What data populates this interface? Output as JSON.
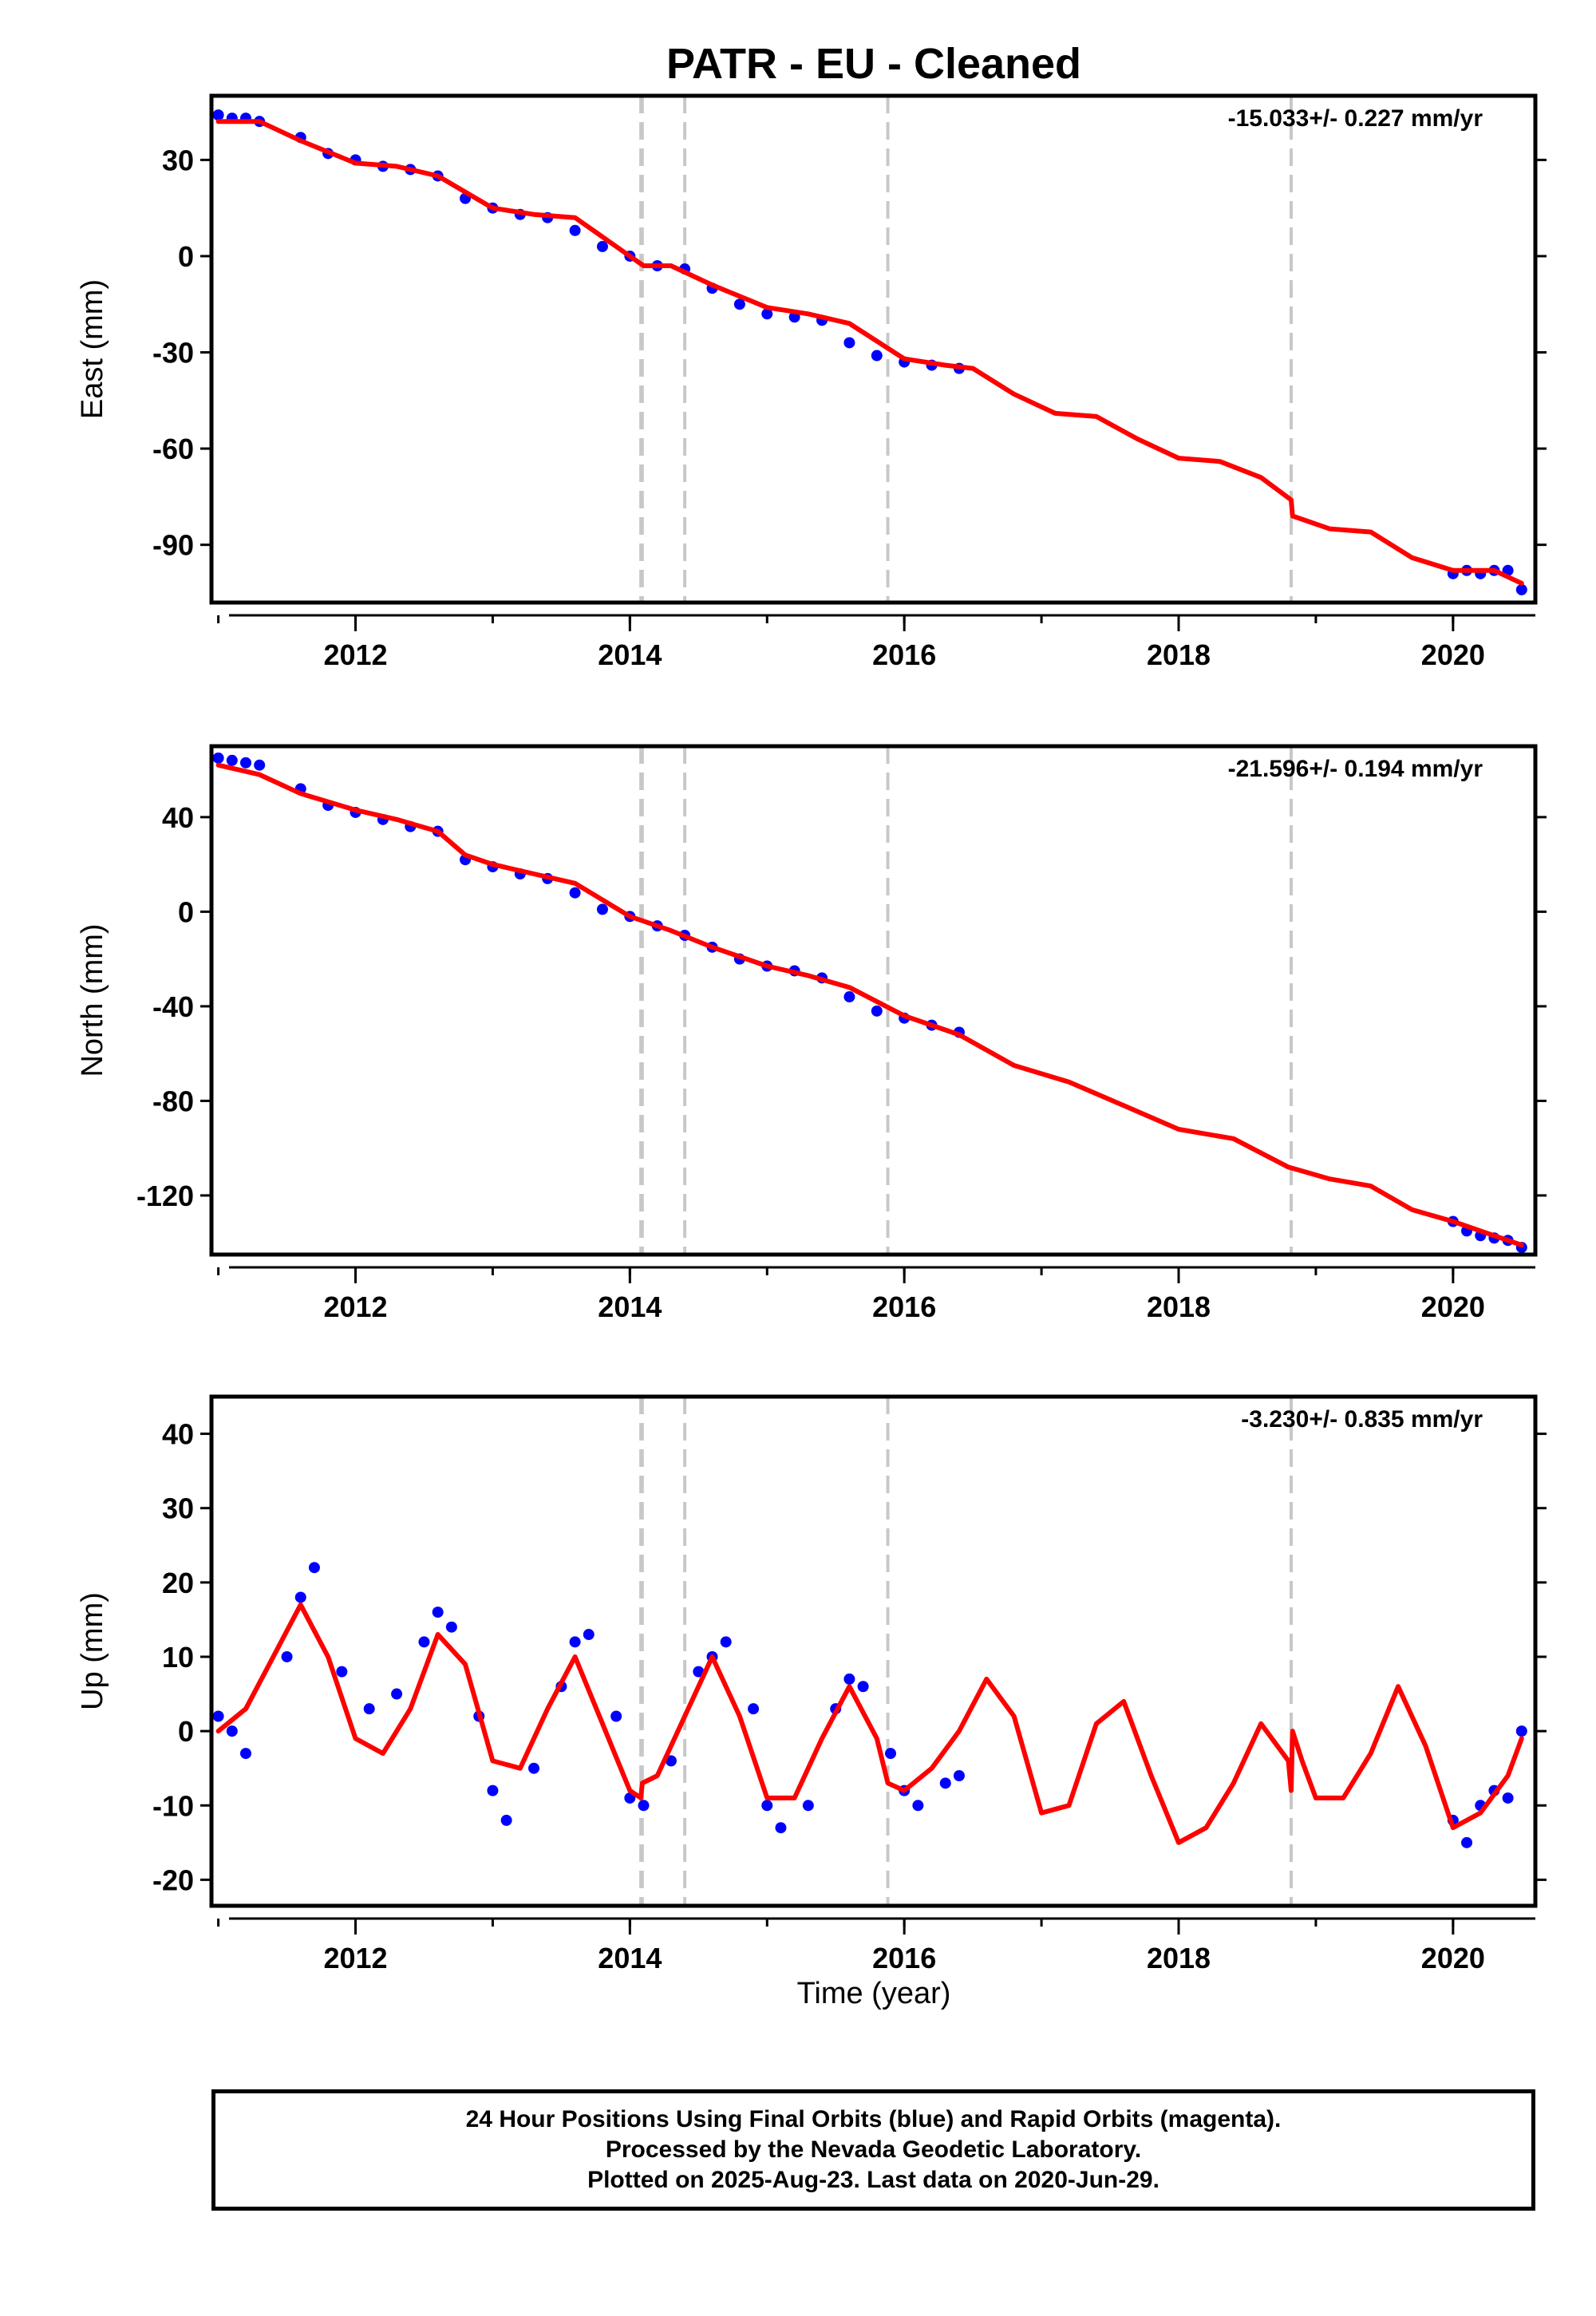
{
  "title": "PATR  - EU - Cleaned",
  "x_axis_label": "Time (year)",
  "caption": [
    "24 Hour Positions Using Final Orbits (blue) and Rapid Orbits (magenta).",
    "Processed by the Nevada Geodetic Laboratory.",
    "Plotted on 2025-Aug-23. Last data on 2020-Jun-29."
  ],
  "colors": {
    "observations": "#0000ff",
    "model": "#ff0000",
    "event_lines": "#c8c8c8",
    "frame": "#000000"
  },
  "chart_data": [
    {
      "type": "scatter",
      "panel": "east",
      "ylabel": "East (mm)",
      "rate_text": "-15.033+/- 0.227 mm/yr",
      "xlim": [
        2010.95,
        2020.6
      ],
      "ylim": [
        -108,
        50
      ],
      "xticks": [
        2012,
        2014,
        2016,
        2018,
        2020
      ],
      "yticks": [
        30,
        0,
        -30,
        -60,
        -90
      ],
      "event_lines": [
        2014.08,
        2014.09,
        2014.4,
        2015.88,
        2018.82
      ],
      "series": [
        {
          "role": "observations",
          "x": [
            2011.0,
            2011.1,
            2011.2,
            2011.3,
            2011.6,
            2011.8,
            2012.0,
            2012.2,
            2012.4,
            2012.6,
            2012.8,
            2013.0,
            2013.2,
            2013.4,
            2013.6,
            2013.8,
            2014.0,
            2014.2,
            2014.4,
            2014.6,
            2014.8,
            2015.0,
            2015.2,
            2015.4,
            2015.6,
            2015.8,
            2016.0,
            2016.2,
            2016.4,
            2020.0,
            2020.1,
            2020.2,
            2020.3,
            2020.4,
            2020.5
          ],
          "y": [
            44,
            43,
            43,
            42,
            37,
            32,
            30,
            28,
            27,
            25,
            18,
            15,
            13,
            12,
            8,
            3,
            0,
            -3,
            -4,
            -10,
            -15,
            -18,
            -19,
            -20,
            -27,
            -31,
            -33,
            -34,
            -35,
            -99,
            -98,
            -99,
            -98,
            -98,
            -104
          ]
        },
        {
          "role": "model",
          "x": [
            2011.0,
            2011.3,
            2011.6,
            2012.0,
            2012.3,
            2012.6,
            2013.0,
            2013.3,
            2013.6,
            2014.0,
            2014.1,
            2014.3,
            2014.6,
            2015.0,
            2015.3,
            2015.6,
            2016.0,
            2016.3,
            2016.5,
            2016.8,
            2017.1,
            2017.4,
            2017.7,
            2018.0,
            2018.3,
            2018.6,
            2018.82,
            2018.83,
            2019.1,
            2019.4,
            2019.7,
            2020.0,
            2020.3,
            2020.5
          ],
          "y": [
            42,
            42,
            36,
            29,
            28,
            25,
            15,
            13,
            12,
            0,
            -3,
            -3,
            -9,
            -16,
            -18,
            -21,
            -32,
            -34,
            -35,
            -43,
            -49,
            -50,
            -57,
            -63,
            -64,
            -69,
            -76,
            -81,
            -85,
            -86,
            -94,
            -98,
            -98,
            -102
          ]
        }
      ]
    },
    {
      "type": "scatter",
      "panel": "north",
      "ylabel": "North (mm)",
      "rate_text": "-21.596+/- 0.194 mm/yr",
      "xlim": [
        2010.95,
        2020.6
      ],
      "ylim": [
        -145,
        70
      ],
      "xticks": [
        2012,
        2014,
        2016,
        2018,
        2020
      ],
      "yticks": [
        40,
        0,
        -40,
        -80,
        -120
      ],
      "event_lines": [
        2014.08,
        2014.09,
        2014.4,
        2015.88,
        2018.82
      ],
      "series": [
        {
          "role": "observations",
          "x": [
            2011.0,
            2011.1,
            2011.2,
            2011.3,
            2011.6,
            2011.8,
            2012.0,
            2012.2,
            2012.4,
            2012.6,
            2012.8,
            2013.0,
            2013.2,
            2013.4,
            2013.6,
            2013.8,
            2014.0,
            2014.2,
            2014.4,
            2014.6,
            2014.8,
            2015.0,
            2015.2,
            2015.4,
            2015.6,
            2015.8,
            2016.0,
            2016.2,
            2016.4,
            2020.0,
            2020.1,
            2020.2,
            2020.3,
            2020.4,
            2020.5
          ],
          "y": [
            65,
            64,
            63,
            62,
            52,
            45,
            42,
            39,
            36,
            34,
            22,
            19,
            16,
            14,
            8,
            1,
            -2,
            -6,
            -10,
            -15,
            -20,
            -23,
            -25,
            -28,
            -36,
            -42,
            -45,
            -48,
            -51,
            -131,
            -135,
            -137,
            -138,
            -139,
            -142
          ]
        },
        {
          "role": "model",
          "x": [
            2011.0,
            2011.3,
            2011.6,
            2012.0,
            2012.3,
            2012.6,
            2012.8,
            2013.0,
            2013.3,
            2013.6,
            2014.0,
            2014.3,
            2014.6,
            2015.0,
            2015.3,
            2015.6,
            2016.0,
            2016.4,
            2016.8,
            2017.2,
            2017.6,
            2018.0,
            2018.4,
            2018.8,
            2019.1,
            2019.4,
            2019.7,
            2020.0,
            2020.3,
            2020.5
          ],
          "y": [
            62,
            58,
            50,
            43,
            39,
            34,
            24,
            20,
            16,
            12,
            -2,
            -8,
            -15,
            -23,
            -27,
            -32,
            -44,
            -52,
            -65,
            -72,
            -82,
            -92,
            -96,
            -108,
            -113,
            -116,
            -126,
            -131,
            -137,
            -141
          ]
        }
      ]
    },
    {
      "type": "scatter",
      "panel": "up",
      "ylabel": "Up (mm)",
      "rate_text": "-3.230+/- 0.835 mm/yr",
      "xlim": [
        2010.95,
        2020.6
      ],
      "ylim": [
        -23.5,
        45
      ],
      "xticks": [
        2012,
        2014,
        2016,
        2018,
        2020
      ],
      "yticks": [
        40,
        30,
        20,
        10,
        0,
        -10,
        -20
      ],
      "event_lines": [
        2014.08,
        2014.09,
        2014.4,
        2015.88,
        2018.82
      ],
      "series": [
        {
          "role": "observations",
          "x": [
            2011.0,
            2011.1,
            2011.2,
            2011.5,
            2011.6,
            2011.7,
            2011.9,
            2012.1,
            2012.3,
            2012.5,
            2012.6,
            2012.7,
            2012.9,
            2013.0,
            2013.1,
            2013.3,
            2013.5,
            2013.6,
            2013.7,
            2013.9,
            2014.0,
            2014.1,
            2014.3,
            2014.5,
            2014.6,
            2014.7,
            2014.9,
            2015.0,
            2015.1,
            2015.3,
            2015.5,
            2015.6,
            2015.7,
            2015.9,
            2016.0,
            2016.1,
            2016.3,
            2016.4,
            2020.0,
            2020.1,
            2020.2,
            2020.3,
            2020.4,
            2020.5
          ],
          "y": [
            2,
            0,
            -3,
            10,
            18,
            22,
            8,
            3,
            5,
            12,
            16,
            14,
            2,
            -8,
            -12,
            -5,
            6,
            12,
            13,
            2,
            -9,
            -10,
            -4,
            8,
            10,
            12,
            3,
            -10,
            -13,
            -10,
            3,
            7,
            6,
            -3,
            -8,
            -10,
            -7,
            -6,
            -12,
            -15,
            -10,
            -8,
            -9,
            0
          ]
        },
        {
          "role": "model",
          "x": [
            2011.0,
            2011.2,
            2011.4,
            2011.6,
            2011.8,
            2012.0,
            2012.2,
            2012.4,
            2012.6,
            2012.8,
            2013.0,
            2013.2,
            2013.4,
            2013.6,
            2013.8,
            2014.0,
            2014.08,
            2014.09,
            2014.2,
            2014.4,
            2014.6,
            2014.8,
            2015.0,
            2015.2,
            2015.4,
            2015.6,
            2015.8,
            2015.88,
            2016.0,
            2016.2,
            2016.4,
            2016.6,
            2016.8,
            2017.0,
            2017.2,
            2017.4,
            2017.6,
            2017.8,
            2018.0,
            2018.2,
            2018.4,
            2018.6,
            2018.8,
            2018.82,
            2018.83,
            2018.9,
            2019.0,
            2019.2,
            2019.4,
            2019.6,
            2019.8,
            2020.0,
            2020.2,
            2020.4,
            2020.5
          ],
          "y": [
            0,
            3,
            10,
            17,
            10,
            -1,
            -3,
            3,
            13,
            9,
            -4,
            -5,
            3,
            10,
            1,
            -8,
            -9,
            -7,
            -6,
            2,
            10,
            2,
            -9,
            -9,
            -1,
            6,
            -1,
            -7,
            -8,
            -5,
            0,
            7,
            2,
            -11,
            -10,
            1,
            4,
            -6,
            -15,
            -13,
            -7,
            1,
            -4,
            -8,
            0,
            -4,
            -9,
            -9,
            -3,
            6,
            -2,
            -13,
            -11,
            -6,
            -1
          ]
        }
      ]
    }
  ]
}
